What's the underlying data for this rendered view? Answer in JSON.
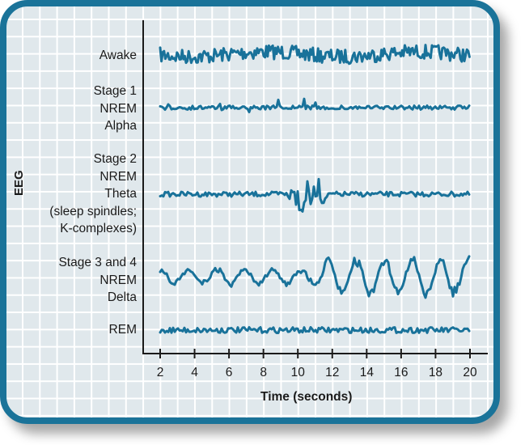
{
  "chart_data": {
    "type": "line",
    "title": "",
    "xlabel": "Time (seconds)",
    "ylabel": "EEG",
    "x_ticks": [
      2,
      4,
      6,
      8,
      10,
      12,
      14,
      16,
      18,
      20
    ],
    "xlim": [
      1,
      21
    ],
    "grid": true,
    "series": [
      {
        "name": "Awake",
        "label_lines": [
          "Awake"
        ],
        "description": "high-frequency, low-amplitude irregular beta waves"
      },
      {
        "name": "Stage 1 NREM Alpha",
        "label_lines": [
          "Stage 1",
          "NREM",
          "Alpha"
        ],
        "description": "low-amplitude alpha waves"
      },
      {
        "name": "Stage 2 NREM Theta",
        "label_lines": [
          "Stage 2",
          "NREM",
          "Theta",
          "(sleep spindles;",
          "K-complexes)"
        ],
        "description": "theta waves with burst (sleep spindle / K-complex) around 10–12 s"
      },
      {
        "name": "Stage 3 and 4 NREM Delta",
        "label_lines": [
          "Stage 3 and 4",
          "NREM",
          "Delta"
        ],
        "description": "high-amplitude, low-frequency delta waves increasing after ~12 s"
      },
      {
        "name": "REM",
        "label_lines": [
          "REM"
        ],
        "description": "low-amplitude, mixed-frequency waves"
      }
    ]
  },
  "colors": {
    "frame": "#1a7399",
    "trace": "#19729a",
    "background": "#e0e8ec",
    "grid": "#ffffff",
    "axis": "#1a1a1a"
  }
}
